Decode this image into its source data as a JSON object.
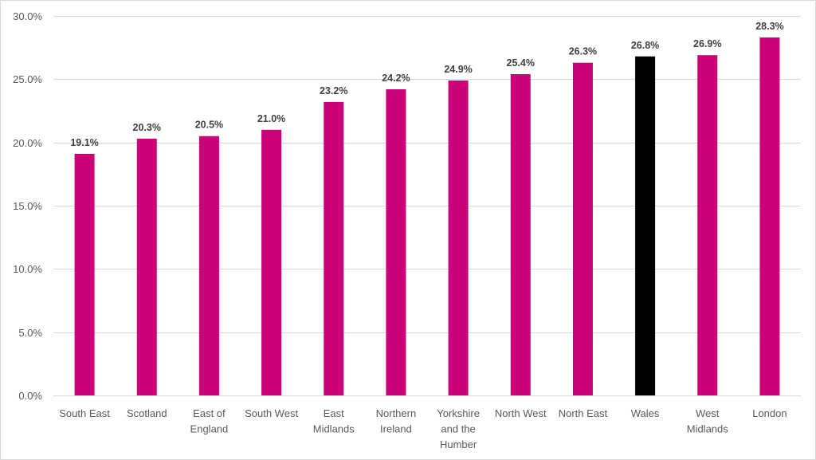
{
  "chart_data": {
    "type": "bar",
    "title": "",
    "xlabel": "",
    "ylabel": "",
    "ylim": [
      0,
      30
    ],
    "y_ticks": [
      0,
      5,
      10,
      15,
      20,
      25,
      30
    ],
    "y_tick_labels": [
      "0.0%",
      "5.0%",
      "10.0%",
      "15.0%",
      "20.0%",
      "25.0%",
      "30.0%"
    ],
    "grid": true,
    "legend": "none",
    "categories": [
      "South East",
      "Scotland",
      "East of England",
      "South West",
      "East Midlands",
      "Northern Ireland",
      "Yorkshire and the Humber",
      "North West",
      "North East",
      "Wales",
      "West Midlands",
      "London"
    ],
    "category_label_lines": [
      [
        "South East"
      ],
      [
        "Scotland"
      ],
      [
        "East of",
        "England"
      ],
      [
        "South West"
      ],
      [
        "East",
        "Midlands"
      ],
      [
        "Northern",
        "Ireland"
      ],
      [
        "Yorkshire",
        "and the",
        "Humber"
      ],
      [
        "North West"
      ],
      [
        "North East"
      ],
      [
        "Wales"
      ],
      [
        "West",
        "Midlands"
      ],
      [
        "London"
      ]
    ],
    "values": [
      19.1,
      20.3,
      20.5,
      21.0,
      23.2,
      24.2,
      24.9,
      25.4,
      26.3,
      26.8,
      26.9,
      28.3
    ],
    "data_labels": [
      "19.1%",
      "20.3%",
      "20.5%",
      "21.0%",
      "23.2%",
      "24.2%",
      "24.9%",
      "25.4%",
      "26.3%",
      "26.8%",
      "26.9%",
      "28.3%"
    ],
    "bar_colors": [
      "#cc0077",
      "#cc0077",
      "#cc0077",
      "#cc0077",
      "#cc0077",
      "#cc0077",
      "#cc0077",
      "#cc0077",
      "#cc0077",
      "#000000",
      "#cc0077",
      "#cc0077"
    ],
    "highlight_category": "Wales"
  }
}
